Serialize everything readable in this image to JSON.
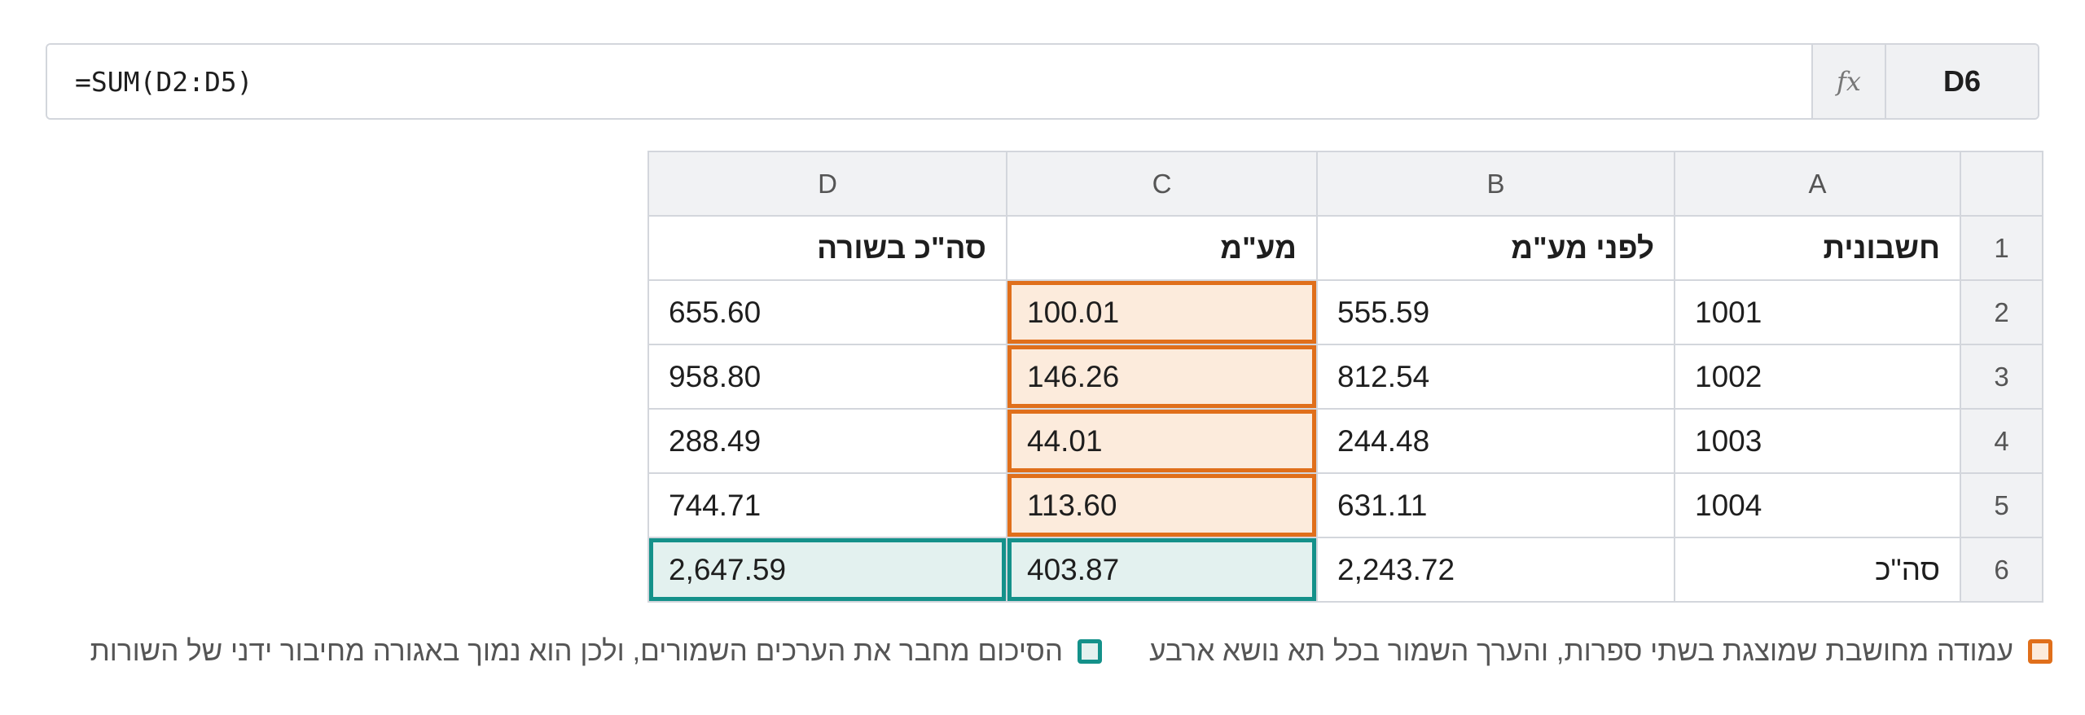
{
  "formula_bar": {
    "cell_reference": "D6",
    "fx_label": "fx",
    "formula": "=SUM(D2:D5)"
  },
  "sheet": {
    "column_headers": [
      "A",
      "B",
      "C",
      "D"
    ],
    "rows": [
      {
        "row_number": "1",
        "cells": [
          "חשבונית",
          "לפני מע\"מ",
          "מע\"מ",
          "סה\"כ בשורה"
        ]
      },
      {
        "row_number": "2",
        "cells": [
          "1001",
          "555.59",
          "100.01",
          "655.60"
        ]
      },
      {
        "row_number": "3",
        "cells": [
          "1002",
          "812.54",
          "146.26",
          "958.80"
        ]
      },
      {
        "row_number": "4",
        "cells": [
          "1003",
          "244.48",
          "44.01",
          "288.49"
        ]
      },
      {
        "row_number": "5",
        "cells": [
          "1004",
          "631.11",
          "113.60",
          "744.71"
        ]
      },
      {
        "row_number": "6",
        "cells": [
          "סה\"כ",
          "2,243.72",
          "403.87",
          "2,647.59"
        ]
      }
    ],
    "selected_cell": "D6"
  },
  "legend": {
    "orange": "עמודה מחושבת שמוצגת בשתי ספרות, והערך השמור בכל תא נושא ארבע",
    "teal": "הסיכום מחבר את הערכים השמורים, ולכן הוא נמוך באגורה מחיבור ידני של השורות"
  },
  "colors": {
    "orange_highlight": "#e06f1b",
    "orange_fill": "#fcebdc",
    "teal_highlight": "#14918a",
    "teal_fill": "#e3f1ef"
  }
}
